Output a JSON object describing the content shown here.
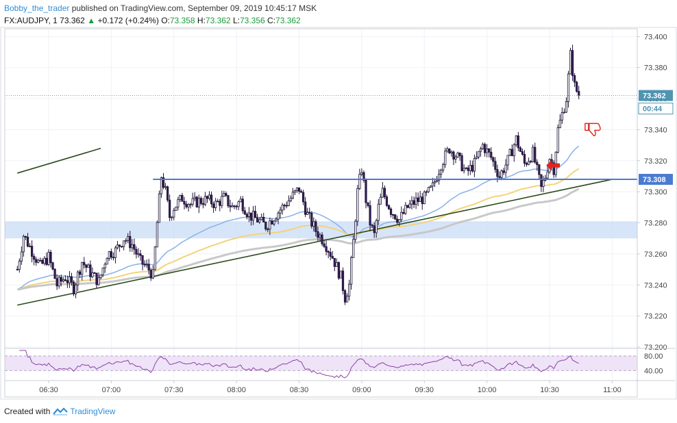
{
  "header": {
    "author": "Bobby_the_trader",
    "published": "published on TradingView.com, September 09, 2019 10:45:17 MSK",
    "symbol": "FX:AUDJPY, 1",
    "last": "73.362",
    "change": "+0.172 (+0.24%)",
    "o_label": "O:",
    "o_value": "73.358",
    "h_label": "H:",
    "h_value": "73.362",
    "l_label": "L:",
    "l_value": "73.356",
    "c_label": "C:",
    "c_value": "73.362"
  },
  "footer": {
    "created_with": "Created with",
    "brand": "TradingView"
  },
  "colors": {
    "bull_candle": "#ffffff",
    "bear_candle": "#3a1f5c",
    "level_line": "#4a7bd0",
    "trendline": "#2b4a1a",
    "zone": "#c9dcf7",
    "ema_fast": "#8db4e8",
    "ema_mid": "#f3d37a",
    "ema_slow": "#c8c8c8",
    "rsi_line": "#8b3fa8",
    "rsi_band": "#efe3f7",
    "arrow": "#e0251b"
  },
  "chart_data": {
    "type": "candlestick",
    "symbol": "FX:AUDJPY",
    "timeframe": "1",
    "ylim": [
      73.2,
      73.405
    ],
    "y_ticks": [
      "73.400",
      "73.380",
      "73.360",
      "73.340",
      "73.320",
      "73.300",
      "73.280",
      "73.260",
      "73.240",
      "73.220",
      "73.200"
    ],
    "x_ticks": [
      "06:30",
      "07:00",
      "07:30",
      "08:00",
      "08:30",
      "09:00",
      "09:30",
      "10:00",
      "10:30",
      "11:00"
    ],
    "price_labels": {
      "last_price": "73.362",
      "countdown": "00:44",
      "level": "73.308"
    },
    "horizontal_level": 73.308,
    "last_price": 73.362,
    "support_zone": [
      73.27,
      73.281
    ],
    "trendlines": [
      {
        "name": "lower",
        "from": [
          "06:15",
          73.227
        ],
        "to": [
          "11:00",
          73.308
        ]
      },
      {
        "name": "upper",
        "from": [
          "06:15",
          73.312
        ],
        "to": [
          "06:55",
          73.328
        ]
      }
    ],
    "close_path": [
      [
        "06:15",
        73.25
      ],
      [
        "06:18",
        73.272
      ],
      [
        "06:22",
        73.262
      ],
      [
        "06:26",
        73.252
      ],
      [
        "06:30",
        73.258
      ],
      [
        "06:34",
        73.24
      ],
      [
        "06:38",
        73.245
      ],
      [
        "06:42",
        73.238
      ],
      [
        "06:46",
        73.255
      ],
      [
        "06:50",
        73.248
      ],
      [
        "06:54",
        73.242
      ],
      [
        "06:58",
        73.26
      ],
      [
        "07:02",
        73.262
      ],
      [
        "07:06",
        73.27
      ],
      [
        "07:10",
        73.266
      ],
      [
        "07:14",
        73.255
      ],
      [
        "07:18",
        73.25
      ],
      [
        "07:20",
        73.246
      ],
      [
        "07:22",
        73.28
      ],
      [
        "07:24",
        73.31
      ],
      [
        "07:26",
        73.3
      ],
      [
        "07:28",
        73.284
      ],
      [
        "07:30",
        73.29
      ],
      [
        "07:34",
        73.296
      ],
      [
        "07:38",
        73.292
      ],
      [
        "07:42",
        73.294
      ],
      [
        "07:46",
        73.295
      ],
      [
        "07:50",
        73.292
      ],
      [
        "07:54",
        73.296
      ],
      [
        "07:58",
        73.29
      ],
      [
        "08:02",
        73.294
      ],
      [
        "08:06",
        73.285
      ],
      [
        "08:10",
        73.282
      ],
      [
        "08:14",
        73.278
      ],
      [
        "08:18",
        73.284
      ],
      [
        "08:22",
        73.29
      ],
      [
        "08:26",
        73.296
      ],
      [
        "08:30",
        73.302
      ],
      [
        "08:34",
        73.285
      ],
      [
        "08:38",
        73.275
      ],
      [
        "08:42",
        73.268
      ],
      [
        "08:46",
        73.258
      ],
      [
        "08:50",
        73.245
      ],
      [
        "08:52",
        73.232
      ],
      [
        "08:54",
        73.24
      ],
      [
        "08:56",
        73.268
      ],
      [
        "08:58",
        73.3
      ],
      [
        "09:00",
        73.315
      ],
      [
        "09:02",
        73.295
      ],
      [
        "09:04",
        73.28
      ],
      [
        "09:06",
        73.272
      ],
      [
        "09:08",
        73.29
      ],
      [
        "09:10",
        73.3
      ],
      [
        "09:14",
        73.288
      ],
      [
        "09:18",
        73.282
      ],
      [
        "09:22",
        73.29
      ],
      [
        "09:26",
        73.294
      ],
      [
        "09:30",
        73.296
      ],
      [
        "09:34",
        73.303
      ],
      [
        "09:38",
        73.318
      ],
      [
        "09:42",
        73.328
      ],
      [
        "09:46",
        73.322
      ],
      [
        "09:50",
        73.312
      ],
      [
        "09:54",
        73.318
      ],
      [
        "09:58",
        73.33
      ],
      [
        "10:02",
        73.322
      ],
      [
        "10:06",
        73.31
      ],
      [
        "10:10",
        73.32
      ],
      [
        "10:14",
        73.334
      ],
      [
        "10:18",
        73.318
      ],
      [
        "10:22",
        73.325
      ],
      [
        "10:26",
        73.302
      ],
      [
        "10:28",
        73.31
      ],
      [
        "10:30",
        73.322
      ],
      [
        "10:32",
        73.315
      ],
      [
        "10:34",
        73.34
      ],
      [
        "10:36",
        73.35
      ],
      [
        "10:38",
        73.36
      ],
      [
        "10:40",
        73.388
      ],
      [
        "10:42",
        73.368
      ],
      [
        "10:44",
        73.362
      ]
    ],
    "indicators": {
      "moving_averages": [
        "ema_fast",
        "ema_mid",
        "ema_slow"
      ],
      "rsi": {
        "ylim": [
          20,
          95
        ],
        "levels": [
          80,
          40
        ],
        "tick_labels": [
          "80.00",
          "40.00"
        ]
      }
    },
    "annotations": [
      "red-arrow-left",
      "thumbs-down"
    ]
  }
}
